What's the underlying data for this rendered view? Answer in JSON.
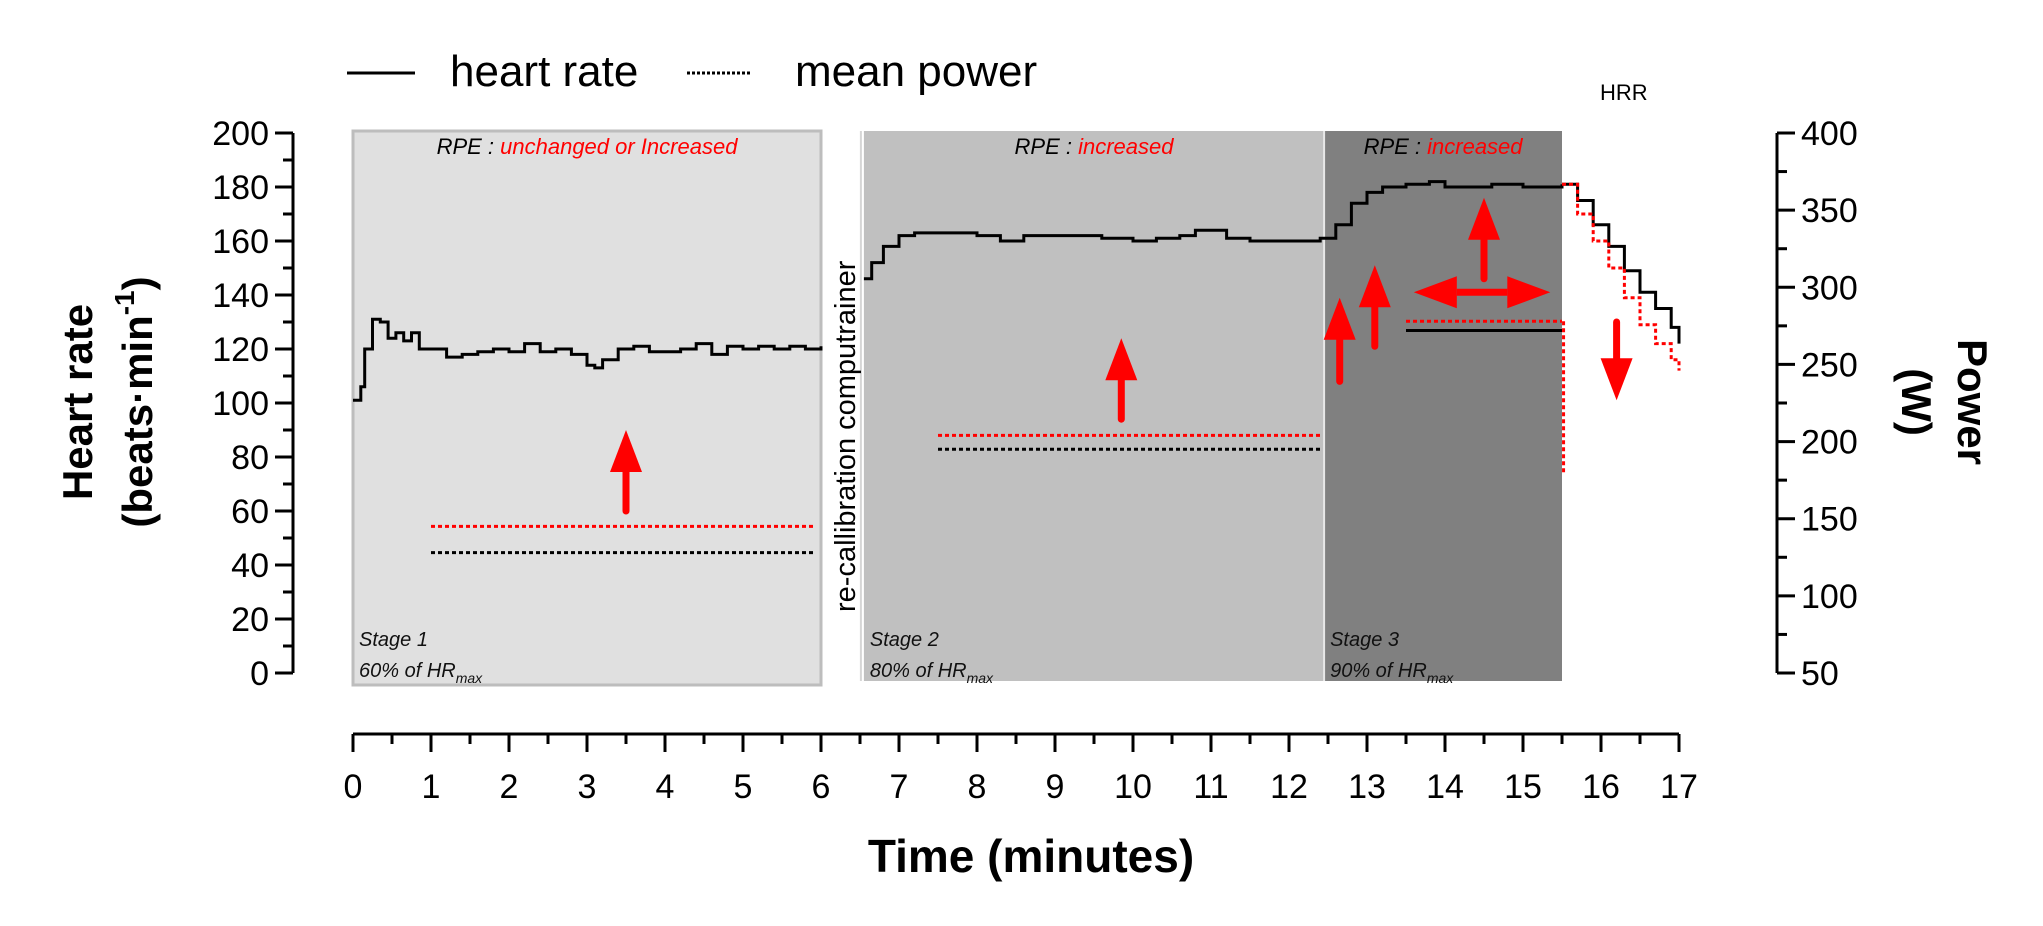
{
  "chart_data": {
    "type": "line",
    "title": "",
    "legend": {
      "placement": "top-left",
      "entries": [
        {
          "label": "heart rate",
          "style": "solid"
        },
        {
          "label": "mean power",
          "style": "dotted"
        }
      ]
    },
    "xlabel": "Time (minutes)",
    "xlim": [
      0,
      17
    ],
    "xticks": [
      0,
      1,
      2,
      3,
      4,
      5,
      6,
      7,
      8,
      9,
      10,
      11,
      12,
      13,
      14,
      15,
      16,
      17
    ],
    "ylabel_left": {
      "line1": "Heart rate",
      "line2": "(beats·min",
      "sup": "-1",
      "close": ")"
    },
    "ylim_left": [
      0,
      200
    ],
    "yticks_left": [
      0,
      20,
      40,
      60,
      80,
      100,
      120,
      140,
      160,
      180,
      200
    ],
    "ylabel_right": {
      "line1": "Power",
      "line2": "(W)"
    },
    "ylim_right": [
      50,
      400
    ],
    "yticks_right": [
      50,
      100,
      150,
      200,
      250,
      300,
      350,
      400
    ],
    "grid": false,
    "stages": [
      {
        "name": "Stage 1",
        "target": "60% of HR",
        "target_sub": "max",
        "rpe_label": "RPE : ",
        "rpe_value": "unchanged or Increased",
        "x_start": 0,
        "x_end": 6,
        "color": "#e0e0e0"
      },
      {
        "name": "Stage 2",
        "target": "80% of HR",
        "target_sub": "max",
        "rpe_label": "RPE : ",
        "rpe_value": "increased",
        "x_start": 6.55,
        "x_end": 12.45,
        "color": "#c0c0c0"
      },
      {
        "name": "Stage 3",
        "target": "90% of HR",
        "target_sub": "max",
        "rpe_label": "RPE : ",
        "rpe_value": "increased",
        "x_start": 12.45,
        "x_end": 15.5,
        "color": "#808080"
      }
    ],
    "annotations": {
      "recalibration": "re-callibration computrainer",
      "hrr": "HRR"
    },
    "series": [
      {
        "name": "heart rate",
        "color": "#000000",
        "style": "solid",
        "axis": "left",
        "segments": [
          {
            "x": [
              0.0,
              0.1,
              0.15,
              0.25,
              0.35,
              0.45,
              0.55,
              0.65,
              0.75,
              0.85,
              1.0,
              1.2,
              1.4,
              1.6,
              1.8,
              2.0,
              2.2,
              2.4,
              2.6,
              2.8,
              3.0,
              3.1,
              3.2,
              3.4,
              3.6,
              3.8,
              4.0,
              4.2,
              4.4,
              4.6,
              4.8,
              5.0,
              5.2,
              5.4,
              5.6,
              5.8,
              6.0
            ],
            "y": [
              101,
              106,
              120,
              131,
              130,
              124,
              126,
              123,
              126,
              120,
              120,
              117,
              118,
              119,
              120,
              119,
              122,
              119,
              120,
              118,
              114,
              113,
              116,
              120,
              121,
              119,
              119,
              120,
              122,
              118,
              121,
              120,
              121,
              120,
              121,
              120,
              121
            ]
          },
          {
            "x": [
              6.55,
              6.65,
              6.8,
              7.0,
              7.2,
              7.5,
              8.0,
              8.3,
              8.6,
              9.0,
              9.3,
              9.6,
              10.0,
              10.3,
              10.6,
              10.8,
              11.0,
              11.2,
              11.5,
              12.0,
              12.4,
              12.6,
              12.8,
              13.0,
              13.2,
              13.5,
              13.8,
              14.0,
              14.3,
              14.6,
              15.0,
              15.3,
              15.5
            ],
            "y": [
              146,
              152,
              158,
              162,
              163,
              163,
              162,
              160,
              162,
              162,
              162,
              161,
              160,
              161,
              162,
              164,
              164,
              161,
              160,
              160,
              161,
              166,
              174,
              178,
              180,
              181,
              182,
              180,
              180,
              181,
              180,
              180,
              181
            ]
          },
          {
            "x": [
              15.5,
              15.7,
              15.9,
              16.1,
              16.3,
              16.5,
              16.7,
              16.9,
              17.0
            ],
            "y": [
              181,
              175,
              166,
              158,
              149,
              141,
              135,
              128,
              122
            ]
          }
        ]
      },
      {
        "name": "heart rate (recovery, red)",
        "color": "#ff0000",
        "style": "dotted",
        "axis": "left",
        "segments": [
          {
            "x": [
              15.5,
              15.7,
              15.9,
              16.1,
              16.3,
              16.5,
              16.7,
              16.9,
              17.0
            ],
            "y": [
              181,
              170,
              160,
              150,
              139,
              129,
              122,
              116,
              112
            ]
          }
        ]
      },
      {
        "name": "mean power (black)",
        "color": "#000000",
        "style": "dotted",
        "axis": "right",
        "segments": [
          {
            "x": [
              1.0,
              5.9
            ],
            "y": [
              128,
              128
            ]
          },
          {
            "x": [
              7.5,
              12.4
            ],
            "y": [
              195,
              195
            ]
          },
          {
            "x": [
              13.5,
              15.5
            ],
            "y": [
              272,
              272
            ],
            "style": "solid"
          }
        ]
      },
      {
        "name": "mean power (red)",
        "color": "#ff0000",
        "style": "dotted",
        "axis": "right",
        "segments": [
          {
            "x": [
              1.0,
              5.9
            ],
            "y": [
              145,
              145
            ]
          },
          {
            "x": [
              7.5,
              12.4
            ],
            "y": [
              204,
              204
            ]
          },
          {
            "x": [
              13.5,
              15.5
            ],
            "y": [
              278,
              278
            ]
          },
          {
            "x": [
              15.52,
              15.52
            ],
            "y": [
              278,
              180
            ]
          }
        ]
      }
    ],
    "arrows": [
      {
        "direction": "up",
        "x": 3.5,
        "y_from": 60,
        "y_to": 90,
        "axis": "left",
        "color": "#ff0000"
      },
      {
        "direction": "up",
        "x": 9.85,
        "y_from": 94,
        "y_to": 124,
        "axis": "left",
        "color": "#ff0000"
      },
      {
        "direction": "up",
        "x": 12.65,
        "y_from": 108,
        "y_to": 139,
        "axis": "left",
        "color": "#ff0000"
      },
      {
        "direction": "up",
        "x": 13.1,
        "y_from": 121,
        "y_to": 151,
        "axis": "left",
        "color": "#ff0000"
      },
      {
        "direction": "up",
        "x": 14.5,
        "y_from": 146,
        "y_to": 176,
        "axis": "left",
        "color": "#ff0000"
      },
      {
        "direction": "left-right",
        "x_from": 13.6,
        "x_to": 15.35,
        "y": 141,
        "axis": "left",
        "color": "#ff0000"
      },
      {
        "direction": "down",
        "x": 16.2,
        "y_from": 130,
        "y_to": 101,
        "axis": "left",
        "color": "#ff0000"
      }
    ],
    "accent_color": "#ff0000"
  }
}
